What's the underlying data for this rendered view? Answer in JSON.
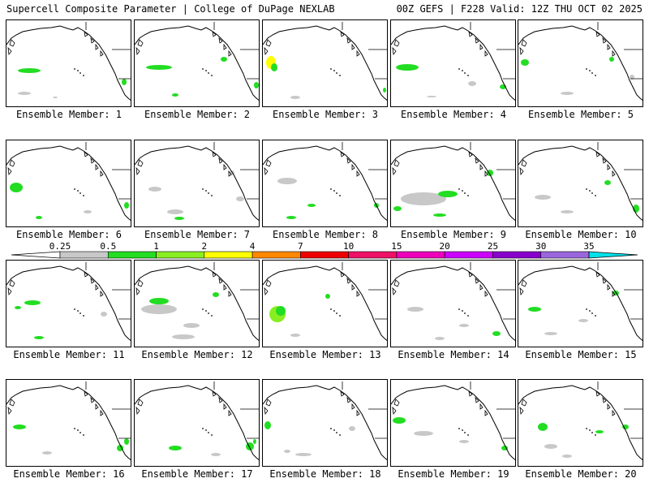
{
  "header": {
    "title": "Supercell Composite Parameter | College of DuPage NEXLAB",
    "run_info": "00Z GEFS | F228 Valid: 12Z THU OCT 02 2025"
  },
  "members": [
    {
      "label": "Ensemble Member: 1"
    },
    {
      "label": "Ensemble Member: 2"
    },
    {
      "label": "Ensemble Member: 3"
    },
    {
      "label": "Ensemble Member: 4"
    },
    {
      "label": "Ensemble Member: 5"
    },
    {
      "label": "Ensemble Member: 6"
    },
    {
      "label": "Ensemble Member: 7"
    },
    {
      "label": "Ensemble Member: 8"
    },
    {
      "label": "Ensemble Member: 9"
    },
    {
      "label": "Ensemble Member: 10"
    },
    {
      "label": "Ensemble Member: 11"
    },
    {
      "label": "Ensemble Member: 12"
    },
    {
      "label": "Ensemble Member: 13"
    },
    {
      "label": "Ensemble Member: 14"
    },
    {
      "label": "Ensemble Member: 15"
    },
    {
      "label": "Ensemble Member: 16"
    },
    {
      "label": "Ensemble Member: 17"
    },
    {
      "label": "Ensemble Member: 18"
    },
    {
      "label": "Ensemble Member: 19"
    },
    {
      "label": "Ensemble Member: 20"
    }
  ],
  "colorbar": {
    "levels": [
      "0.25",
      "0.5",
      "1",
      "2",
      "4",
      "7",
      "10",
      "15",
      "20",
      "25",
      "30",
      "35"
    ],
    "colors": [
      "#c8c8c8",
      "#22dd22",
      "#88ee22",
      "#ffff00",
      "#ff8800",
      "#ee0000",
      "#ee1166",
      "#ee00bb",
      "#cc00ff",
      "#8800cc",
      "#9966dd",
      "#00e0e8"
    ]
  }
}
